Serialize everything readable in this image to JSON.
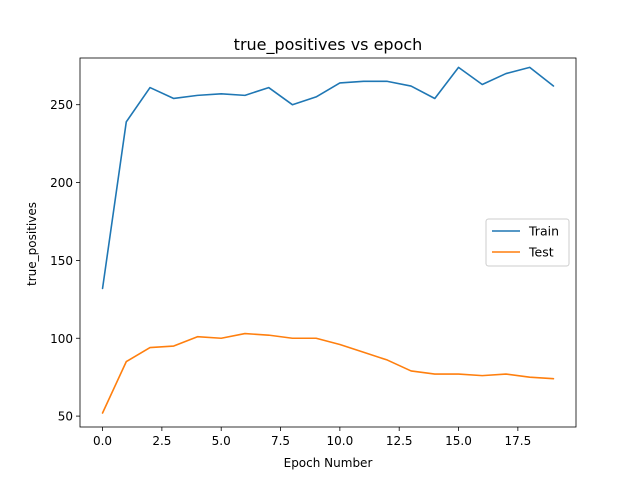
{
  "chart_data": {
    "type": "line",
    "title": "true_positives vs epoch",
    "xlabel": "Epoch Number",
    "ylabel": "true_positives",
    "xlim": [
      -0.95,
      19.95
    ],
    "ylim": [
      43,
      280
    ],
    "xticks": [
      0.0,
      2.5,
      5.0,
      7.5,
      10.0,
      12.5,
      15.0,
      17.5
    ],
    "xtick_labels": [
      "0.0",
      "2.5",
      "5.0",
      "7.5",
      "10.0",
      "12.5",
      "15.0",
      "17.5"
    ],
    "yticks": [
      50,
      100,
      150,
      200,
      250
    ],
    "ytick_labels": [
      "50",
      "100",
      "150",
      "200",
      "250"
    ],
    "grid": false,
    "legend_position": "center-right",
    "x": [
      0,
      1,
      2,
      3,
      4,
      5,
      6,
      7,
      8,
      9,
      10,
      11,
      12,
      13,
      14,
      15,
      16,
      17,
      18,
      19
    ],
    "series": [
      {
        "name": "Train",
        "color": "#1f77b4",
        "values": [
          132,
          239,
          261,
          254,
          256,
          257,
          256,
          261,
          250,
          255,
          264,
          265,
          265,
          262,
          254,
          274,
          263,
          270,
          274,
          262
        ]
      },
      {
        "name": "Test",
        "color": "#ff7f0e",
        "values": [
          52,
          85,
          94,
          95,
          101,
          100,
          103,
          102,
          100,
          100,
          96,
          91,
          86,
          79,
          77,
          77,
          76,
          77,
          75,
          74
        ]
      }
    ]
  }
}
